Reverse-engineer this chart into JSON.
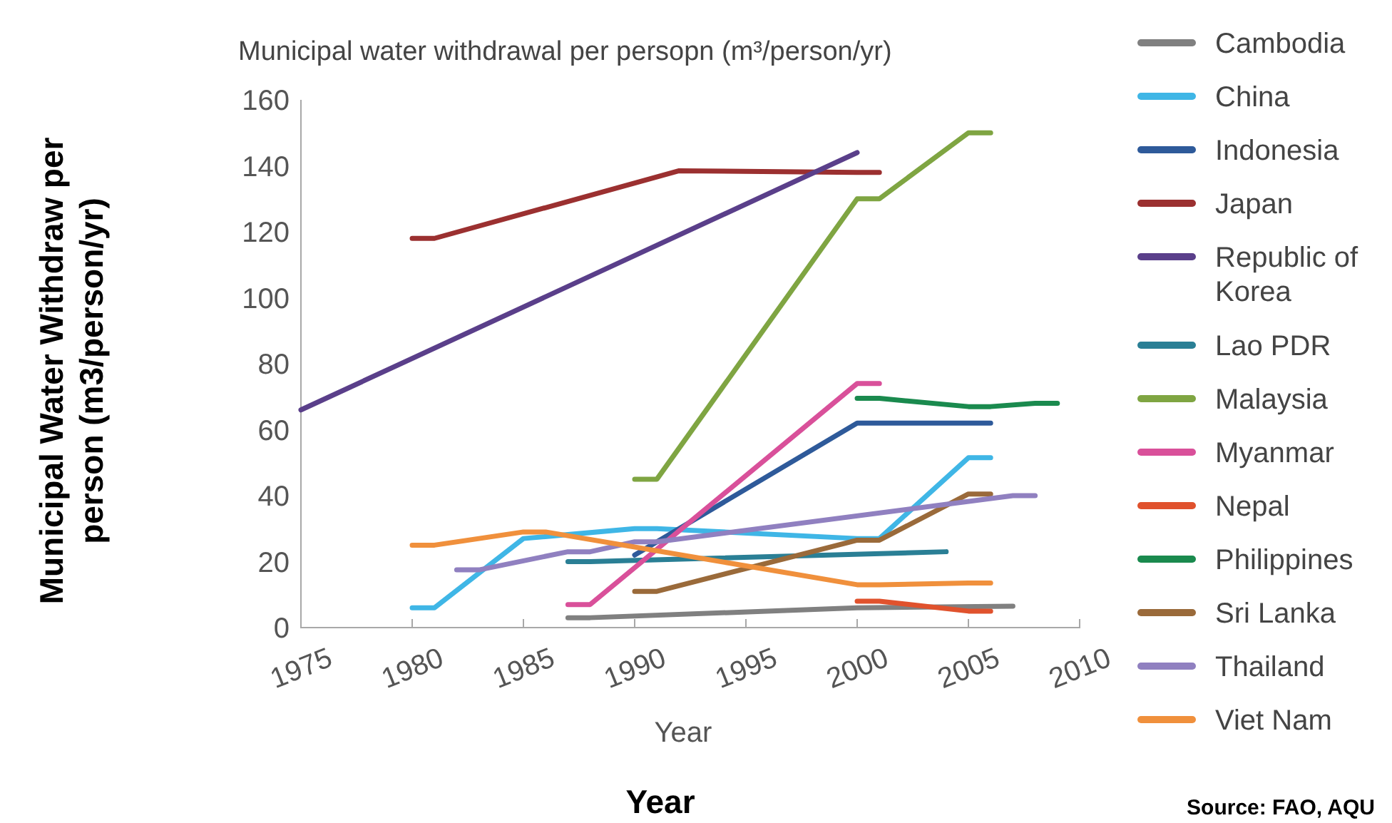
{
  "chart_data": {
    "type": "line",
    "title": "Municipal water withdrawal per persopn (m³/person/yr)",
    "xlabel": "Year",
    "ylabel": "Municipal Water Withdraw per person (m3/person/yr)",
    "annotations": [
      "Year",
      "Source: FAO, AQU"
    ],
    "xlim": [
      1975,
      2010
    ],
    "xticks": [
      1975,
      1980,
      1985,
      1990,
      1995,
      2000,
      2005,
      2010
    ],
    "ylim": [
      0,
      160
    ],
    "yticks": [
      0,
      20,
      40,
      60,
      80,
      100,
      120,
      140,
      160
    ],
    "grid": false,
    "legend": "right",
    "marker": "none",
    "line_style": "solid",
    "series": [
      {
        "name": "Cambodia",
        "color": "#808080",
        "x": [
          1987,
          1988,
          2000,
          2007
        ],
        "values": [
          3,
          3,
          6,
          6.5
        ]
      },
      {
        "name": "China",
        "color": "#3fb6e6",
        "x": [
          1980,
          1981,
          1985,
          1990,
          1991,
          2000,
          2001,
          2005,
          2006
        ],
        "values": [
          6,
          6,
          27,
          30,
          30,
          27,
          27,
          51.5,
          51.5
        ]
      },
      {
        "name": "Indonesia",
        "color": "#2e5a9a",
        "x": [
          1990,
          2000,
          2006
        ],
        "values": [
          22,
          62,
          62
        ]
      },
      {
        "name": "Japan",
        "color": "#9b3030",
        "x": [
          1980,
          1981,
          1992,
          2000,
          2001
        ],
        "values": [
          118,
          118,
          138.5,
          138,
          138
        ]
      },
      {
        "name": "Republic of Korea",
        "color": "#5a3f8a",
        "x": [
          1975,
          2000
        ],
        "values": [
          66,
          144
        ]
      },
      {
        "name": "Lao PDR",
        "color": "#2a7f95",
        "x": [
          1987,
          1988,
          2004
        ],
        "values": [
          20,
          20,
          23
        ]
      },
      {
        "name": "Malaysia",
        "color": "#7fa542",
        "x": [
          1990,
          1991,
          2000,
          2001,
          2005,
          2006
        ],
        "values": [
          45,
          45,
          130,
          130,
          150,
          150
        ]
      },
      {
        "name": "Myanmar",
        "color": "#d9509a",
        "x": [
          1987,
          1988,
          2000,
          2001
        ],
        "values": [
          7,
          7,
          74,
          74
        ]
      },
      {
        "name": "Nepal",
        "color": "#e0522d",
        "x": [
          2000,
          2001,
          2005,
          2006
        ],
        "values": [
          8,
          8,
          5,
          5
        ]
      },
      {
        "name": "Philippines",
        "color": "#1a8a4e",
        "x": [
          2000,
          2001,
          2005,
          2006,
          2008,
          2009
        ],
        "values": [
          69.5,
          69.5,
          67,
          67,
          68,
          68
        ]
      },
      {
        "name": "Sri Lanka",
        "color": "#9a6a3a",
        "x": [
          1990,
          1991,
          2000,
          2001,
          2005,
          2006
        ],
        "values": [
          11,
          11,
          26.5,
          26.5,
          40.5,
          40.5
        ]
      },
      {
        "name": "Thailand",
        "color": "#9080c0",
        "x": [
          1982,
          1983,
          1987,
          1988,
          1990,
          1991,
          2007,
          2008
        ],
        "values": [
          17.5,
          17.5,
          23,
          23,
          26,
          26,
          40,
          40
        ]
      },
      {
        "name": "Viet Nam",
        "color": "#f0903c",
        "x": [
          1980,
          1981,
          1985,
          1986,
          2000,
          2001,
          2005,
          2006
        ],
        "values": [
          25,
          25,
          29,
          29,
          13,
          13,
          13.5,
          13.5
        ]
      }
    ]
  }
}
